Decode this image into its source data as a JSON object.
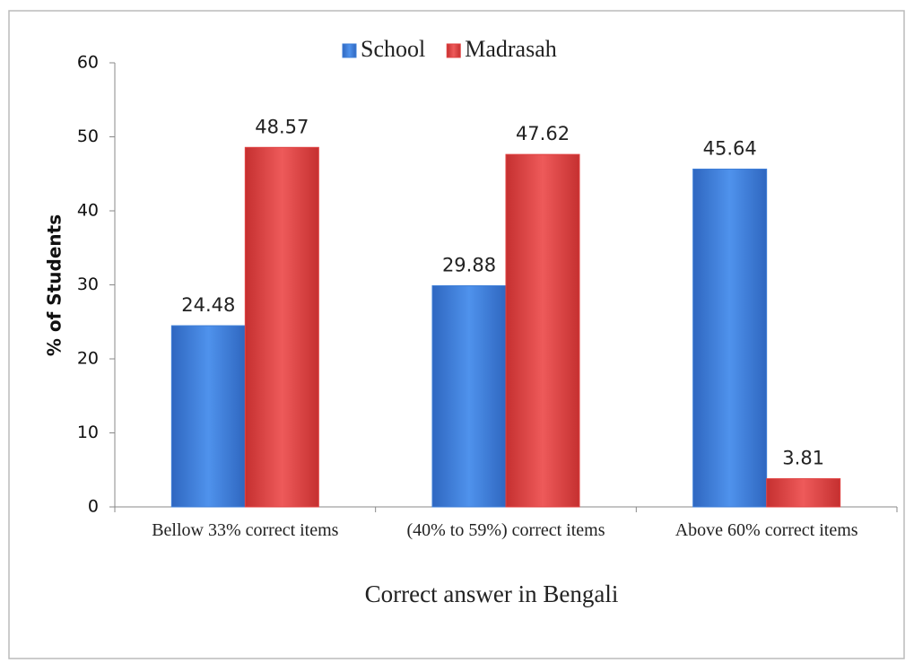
{
  "chart_data": {
    "type": "bar",
    "categories": [
      "Bellow 33% correct items",
      "(40% to 59%) correct items",
      "Above 60% correct items"
    ],
    "series": [
      {
        "name": "School",
        "color": "#3f7fd8",
        "values": [
          24.48,
          29.88,
          45.64
        ]
      },
      {
        "name": "Madrasah",
        "color": "#e04242",
        "values": [
          48.57,
          47.62,
          3.81
        ]
      }
    ],
    "x_label": "Correct answer in Bengali",
    "y_label": "% of Students",
    "ylim": [
      0,
      60
    ],
    "yticks": [
      0,
      10,
      20,
      30,
      40,
      50,
      60
    ],
    "legend": "top"
  }
}
